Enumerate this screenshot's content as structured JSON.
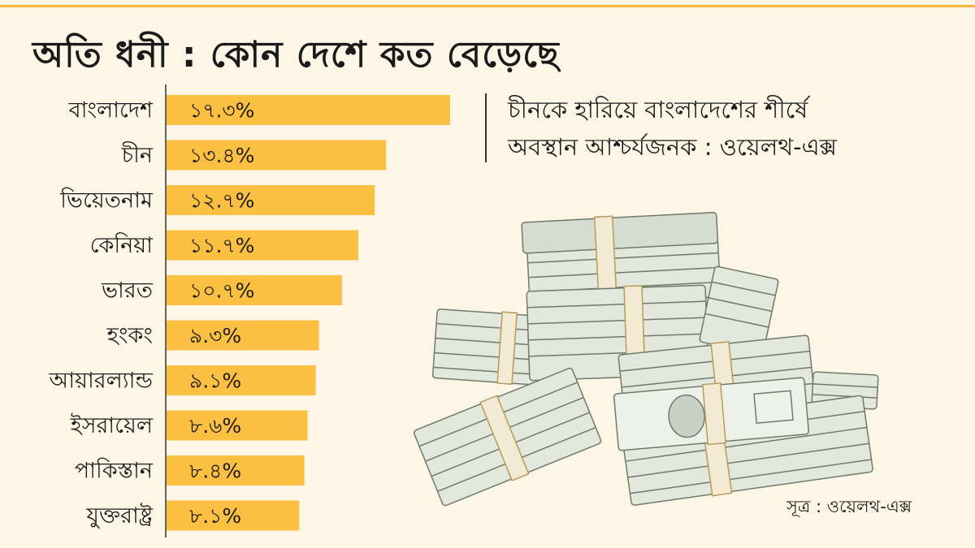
{
  "title": "অতি ধনী : কোন দেশে কত বেড়েছে",
  "quote": {
    "line1": "চীনকে হারিয়ে বাংলাদেশের শীর্ষে",
    "line2": "অবস্থান আশ্চর্যজনক : ওয়েলথ-এক্স"
  },
  "source": "সূত্র : ওয়েলথ-এক্স",
  "colors": {
    "bar": "#fbbf42",
    "background": "#fdf5e6",
    "accent_rule": "#f4b63c"
  },
  "illustration": "stacks-of-dollar-bills",
  "chart_data": {
    "type": "bar",
    "orientation": "horizontal",
    "title": "অতি ধনী : কোন দেশে কত বেড়েছে",
    "unit": "%",
    "categories": [
      "বাংলাদেশ",
      "চীন",
      "ভিয়েতনাম",
      "কেনিয়া",
      "ভারত",
      "হংকং",
      "আয়ারল্যান্ড",
      "ইসরায়েল",
      "পাকিস্তান",
      "যুক্তরাষ্ট্র"
    ],
    "values": [
      17.3,
      13.4,
      12.7,
      11.7,
      10.7,
      9.3,
      9.1,
      8.6,
      8.4,
      8.1
    ],
    "value_labels": [
      "১৭.৩%",
      "১৩.৪%",
      "১২.৭%",
      "১১.৭%",
      "১০.৭%",
      "৯.৩%",
      "৯.১%",
      "৮.৬%",
      "৮.৪%",
      "৮.১%"
    ],
    "xlim": [
      0,
      17.3
    ],
    "grid": false,
    "legend": "none"
  }
}
